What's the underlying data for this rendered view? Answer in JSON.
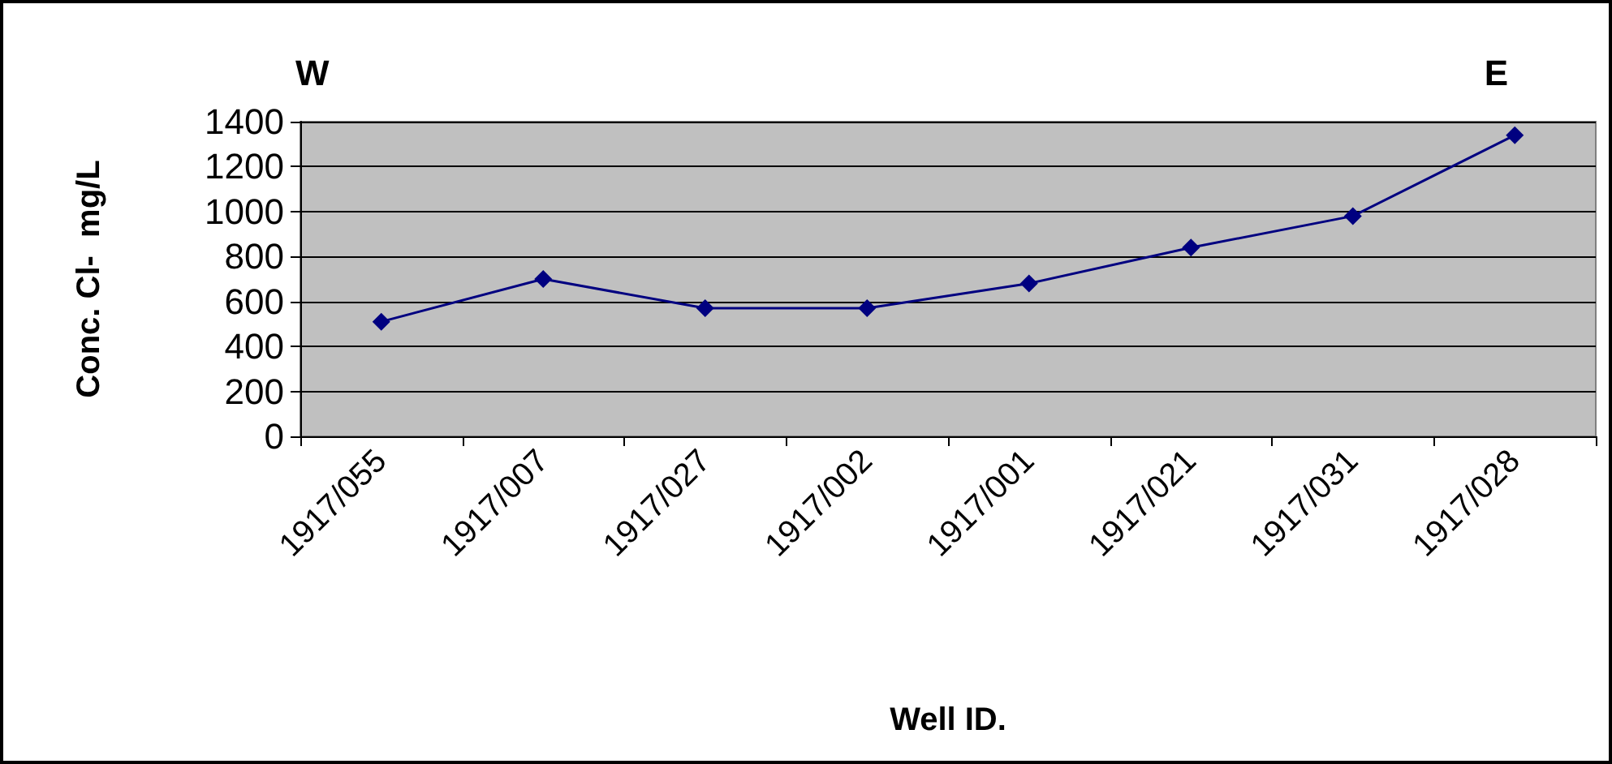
{
  "chart_data": {
    "type": "line",
    "xlabel": "Well ID.",
    "ylabel": "Conc. Cl-  mg/L",
    "categories": [
      "1917/055",
      "1917/007",
      "1917/027",
      "1917/002",
      "1917/001",
      "1917/021",
      "1917/031",
      "1917/028"
    ],
    "series": [
      {
        "color": "#000080",
        "values": [
          510,
          700,
          570,
          570,
          680,
          840,
          980,
          1340
        ]
      }
    ],
    "ylim": [
      0,
      1400
    ],
    "yticks": [
      0,
      200,
      400,
      600,
      800,
      1000,
      1200,
      1400
    ],
    "grid": "y",
    "marker": "diamond",
    "line_style": "solid",
    "annotations": [
      "W",
      "E"
    ]
  }
}
